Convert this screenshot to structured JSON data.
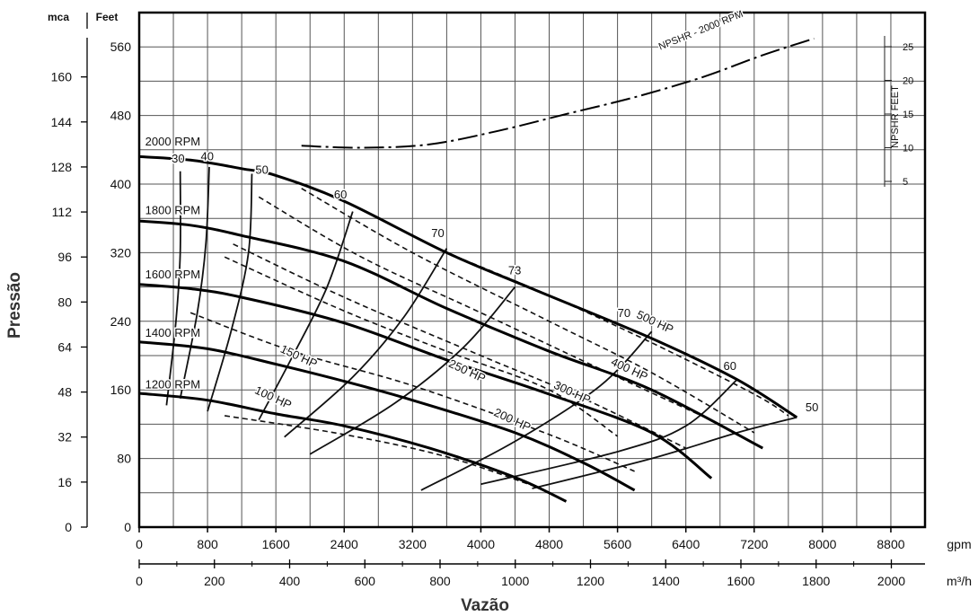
{
  "chart_data": {
    "type": "line",
    "title": "",
    "xlabel": "Vazão",
    "ylabel": "Pressão",
    "x_primary": {
      "unit": "gpm",
      "range": [
        0,
        9200
      ],
      "ticks": [
        "0",
        "800",
        "1600",
        "2400",
        "3200",
        "4000",
        "4800",
        "5600",
        "6400",
        "7200",
        "8000",
        "8800"
      ]
    },
    "x_secondary": {
      "unit": "m³/h",
      "ticks": [
        "0",
        "200",
        "400",
        "600",
        "800",
        "1000",
        "1200",
        "1400",
        "1600",
        "1800",
        "2000"
      ]
    },
    "y_feet": {
      "header": "Feet",
      "range": [
        0,
        600
      ],
      "ticks": [
        "80",
        "160",
        "240",
        "320",
        "400",
        "480",
        "560"
      ]
    },
    "y_mca": {
      "header": "mca",
      "ticks": [
        "0",
        "16",
        "32",
        "48",
        "64",
        "80",
        "96",
        "112",
        "128",
        "144",
        "160"
      ]
    },
    "y_npsh": {
      "label": "NPSHR FEET",
      "ticks": [
        "5",
        "10",
        "15",
        "20",
        "25"
      ]
    },
    "grid": true,
    "speed_curves": [
      {
        "name": "2000 RPM",
        "points": [
          [
            0,
            432
          ],
          [
            600,
            428
          ],
          [
            1200,
            418
          ],
          [
            1600,
            410
          ],
          [
            2400,
            380
          ],
          [
            3600,
            320
          ],
          [
            4600,
            278
          ],
          [
            6000,
            220
          ],
          [
            7000,
            172
          ],
          [
            7700,
            128
          ]
        ]
      },
      {
        "name": "1800 RPM",
        "points": [
          [
            0,
            357
          ],
          [
            600,
            352
          ],
          [
            1200,
            340
          ],
          [
            2400,
            310
          ],
          [
            3600,
            255
          ],
          [
            4800,
            205
          ],
          [
            6000,
            160
          ],
          [
            7300,
            92
          ]
        ]
      },
      {
        "name": "1600 RPM",
        "points": [
          [
            0,
            283
          ],
          [
            600,
            278
          ],
          [
            1200,
            268
          ],
          [
            2400,
            238
          ],
          [
            3600,
            195
          ],
          [
            4800,
            155
          ],
          [
            6000,
            110
          ],
          [
            6700,
            57
          ]
        ]
      },
      {
        "name": "1400 RPM",
        "points": [
          [
            0,
            216
          ],
          [
            800,
            208
          ],
          [
            1600,
            190
          ],
          [
            2400,
            170
          ],
          [
            3200,
            148
          ],
          [
            4400,
            110
          ],
          [
            5200,
            75
          ],
          [
            5800,
            43
          ]
        ]
      },
      {
        "name": "1200 RPM",
        "points": [
          [
            0,
            156
          ],
          [
            800,
            148
          ],
          [
            1600,
            132
          ],
          [
            2400,
            118
          ],
          [
            3400,
            92
          ],
          [
            4400,
            58
          ],
          [
            5000,
            30
          ]
        ]
      }
    ],
    "efficiency_curves": [
      {
        "name": "30",
        "points": [
          [
            320,
            142
          ],
          [
            430,
            240
          ],
          [
            480,
            320
          ],
          [
            480,
            415
          ]
        ]
      },
      {
        "name": "40",
        "points": [
          [
            480,
            150
          ],
          [
            680,
            250
          ],
          [
            780,
            330
          ],
          [
            820,
            420
          ]
        ]
      },
      {
        "name": "50",
        "points": [
          [
            800,
            135
          ],
          [
            1080,
            230
          ],
          [
            1280,
            320
          ],
          [
            1320,
            412
          ]
        ]
      },
      {
        "name": "60",
        "points": [
          [
            1400,
            125
          ],
          [
            1800,
            200
          ],
          [
            2200,
            280
          ],
          [
            2500,
            368
          ]
        ]
      },
      {
        "name": "70",
        "points": [
          [
            1700,
            105
          ],
          [
            2500,
            175
          ],
          [
            3100,
            245
          ],
          [
            3600,
            325
          ]
        ]
      },
      {
        "name": "73",
        "points": [
          [
            2000,
            85
          ],
          [
            3000,
            145
          ],
          [
            3800,
            210
          ],
          [
            4400,
            280
          ]
        ]
      },
      {
        "name": "70",
        "points": [
          [
            3300,
            43
          ],
          [
            4400,
            100
          ],
          [
            5400,
            165
          ],
          [
            6000,
            228
          ]
        ]
      },
      {
        "name": "60",
        "points": [
          [
            4000,
            50
          ],
          [
            5600,
            88
          ],
          [
            6400,
            118
          ],
          [
            7000,
            172
          ]
        ]
      },
      {
        "name": "50",
        "points": [
          [
            4600,
            45
          ],
          [
            6000,
            80
          ],
          [
            7000,
            110
          ],
          [
            7700,
            128
          ]
        ]
      }
    ],
    "power_curves": [
      {
        "name": "100 HP",
        "points": [
          [
            1000,
            130
          ],
          [
            2400,
            108
          ],
          [
            3600,
            82
          ],
          [
            4700,
            45
          ]
        ]
      },
      {
        "name": "150 HP",
        "points": [
          [
            600,
            250
          ],
          [
            1800,
            205
          ],
          [
            3200,
            165
          ],
          [
            4800,
            108
          ],
          [
            5800,
            65
          ]
        ]
      },
      {
        "name": "200 HP",
        "points": [
          [
            1000,
            315
          ],
          [
            2400,
            252
          ],
          [
            3600,
            205
          ],
          [
            4800,
            160
          ],
          [
            5600,
            106
          ]
        ]
      },
      {
        "name": "250 HP",
        "points": [
          [
            1100,
            330
          ],
          [
            2400,
            268
          ],
          [
            4000,
            200
          ],
          [
            5200,
            150
          ],
          [
            6400,
            92
          ]
        ]
      },
      {
        "name": "300 HP",
        "points": [
          [
            1400,
            385
          ],
          [
            2600,
            315
          ],
          [
            4000,
            250
          ],
          [
            5600,
            175
          ],
          [
            6800,
            120
          ]
        ]
      },
      {
        "name": "400 HP",
        "points": [
          [
            1900,
            395
          ],
          [
            3200,
            320
          ],
          [
            4800,
            240
          ],
          [
            6000,
            180
          ],
          [
            7200,
            110
          ]
        ]
      },
      {
        "name": "500 HP",
        "points": [
          [
            3600,
            320
          ],
          [
            4800,
            270
          ],
          [
            6000,
            215
          ],
          [
            7200,
            155
          ],
          [
            7600,
            130
          ]
        ]
      }
    ],
    "npshr_curve": {
      "name": "NPSHR - 2000 RPM",
      "points": [
        [
          1900,
          10.3
        ],
        [
          2600,
          10.0
        ],
        [
          3400,
          10.5
        ],
        [
          4200,
          12.5
        ],
        [
          5000,
          15.0
        ],
        [
          5800,
          17.5
        ],
        [
          6600,
          20.5
        ],
        [
          7200,
          23.3
        ],
        [
          7600,
          25.0
        ],
        [
          7900,
          26.2
        ]
      ]
    },
    "curve_labels": {
      "rpm": [
        {
          "text": "2000 RPM",
          "x": 70,
          "y": 445
        },
        {
          "text": "1800 RPM",
          "x": 70,
          "y": 365
        },
        {
          "text": "1600 RPM",
          "x": 70,
          "y": 290
        },
        {
          "text": "1400 RPM",
          "x": 70,
          "y": 222
        },
        {
          "text": "1200 RPM",
          "x": 70,
          "y": 162
        }
      ],
      "eff": [
        {
          "text": "30",
          "x": 380,
          "y": 425
        },
        {
          "text": "40",
          "x": 720,
          "y": 428
        },
        {
          "text": "50",
          "x": 1360,
          "y": 412
        },
        {
          "text": "60",
          "x": 2280,
          "y": 383
        },
        {
          "text": "70",
          "x": 3420,
          "y": 338
        },
        {
          "text": "73",
          "x": 4320,
          "y": 295
        },
        {
          "text": "70",
          "x": 5600,
          "y": 245
        },
        {
          "text": "60",
          "x": 6840,
          "y": 183
        },
        {
          "text": "50",
          "x": 7800,
          "y": 135
        }
      ],
      "hp": [
        {
          "text": "100 HP",
          "x": 1550,
          "y": 147
        },
        {
          "text": "150 HP",
          "x": 1850,
          "y": 195
        },
        {
          "text": "200 HP",
          "x": 4350,
          "y": 121
        },
        {
          "text": "250 HP",
          "x": 3820,
          "y": 178
        },
        {
          "text": "300 HP",
          "x": 5050,
          "y": 153
        },
        {
          "text": "400 HP",
          "x": 5720,
          "y": 180
        },
        {
          "text": "500 HP",
          "x": 6020,
          "y": 235
        }
      ],
      "npsh": {
        "text": "NPSHR - 2000 RPM",
        "x": 6100,
        "y": 24.5
      }
    }
  }
}
